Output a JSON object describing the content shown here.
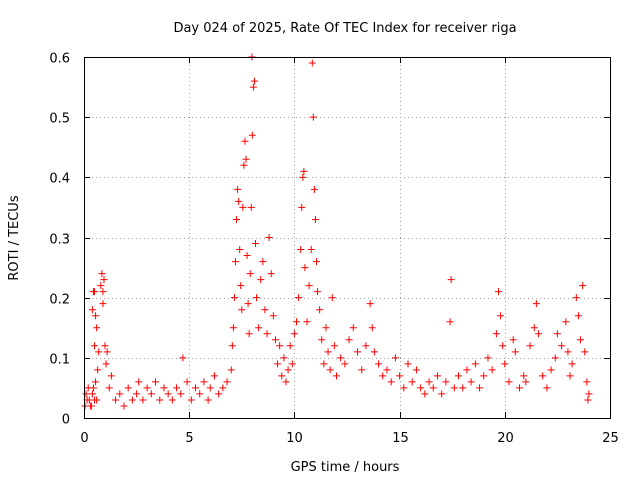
{
  "chart_data": {
    "type": "scatter",
    "title": "Day 024 of 2025, Rate Of TEC Index for receiver riga",
    "xlabel": "GPS time / hours",
    "ylabel": "ROTI / TECUs",
    "xlim": [
      0,
      25
    ],
    "ylim": [
      0,
      0.6
    ],
    "x_ticks": [
      0,
      5,
      10,
      15,
      20,
      25
    ],
    "x_tick_labels": [
      "0",
      "5",
      "10",
      "15",
      "20",
      "25"
    ],
    "y_ticks": [
      0,
      0.1,
      0.2,
      0.3,
      0.4,
      0.5,
      0.6
    ],
    "y_tick_labels": [
      "0",
      "0.1",
      "0.2",
      "0.3",
      "0.4",
      "0.5",
      "0.6"
    ],
    "grid": true,
    "marker": "+",
    "color": "#ff0000",
    "series": [
      {
        "name": "ROTI",
        "points": [
          [
            0.05,
            0.02
          ],
          [
            0.1,
            0.04
          ],
          [
            0.15,
            0.03
          ],
          [
            0.2,
            0.05
          ],
          [
            0.25,
            0.03
          ],
          [
            0.3,
            0.02
          ],
          [
            0.4,
            0.04
          ],
          [
            0.5,
            0.03
          ],
          [
            0.55,
            0.06
          ],
          [
            0.6,
            0.03
          ],
          [
            0.35,
            0.02
          ],
          [
            0.45,
            0.05
          ],
          [
            0.65,
            0.08
          ],
          [
            0.7,
            0.11
          ],
          [
            0.4,
            0.18
          ],
          [
            0.45,
            0.21
          ],
          [
            0.5,
            0.21
          ],
          [
            0.55,
            0.17
          ],
          [
            0.6,
            0.15
          ],
          [
            0.5,
            0.12
          ],
          [
            0.8,
            0.22
          ],
          [
            0.85,
            0.24
          ],
          [
            0.9,
            0.21
          ],
          [
            0.9,
            0.19
          ],
          [
            0.95,
            0.23
          ],
          [
            1.0,
            0.12
          ],
          [
            1.05,
            0.09
          ],
          [
            1.1,
            0.11
          ],
          [
            1.2,
            0.05
          ],
          [
            1.3,
            0.07
          ],
          [
            1.5,
            0.03
          ],
          [
            1.7,
            0.04
          ],
          [
            1.9,
            0.02
          ],
          [
            2.1,
            0.05
          ],
          [
            2.3,
            0.03
          ],
          [
            2.5,
            0.04
          ],
          [
            2.6,
            0.06
          ],
          [
            2.8,
            0.03
          ],
          [
            3.0,
            0.05
          ],
          [
            3.2,
            0.04
          ],
          [
            3.4,
            0.06
          ],
          [
            3.6,
            0.03
          ],
          [
            3.8,
            0.05
          ],
          [
            4.0,
            0.04
          ],
          [
            4.2,
            0.03
          ],
          [
            4.4,
            0.05
          ],
          [
            4.6,
            0.04
          ],
          [
            4.7,
            0.1
          ],
          [
            4.9,
            0.06
          ],
          [
            5.1,
            0.03
          ],
          [
            5.3,
            0.05
          ],
          [
            5.5,
            0.04
          ],
          [
            5.7,
            0.06
          ],
          [
            5.9,
            0.03
          ],
          [
            6.0,
            0.05
          ],
          [
            6.2,
            0.07
          ],
          [
            6.4,
            0.04
          ],
          [
            6.6,
            0.05
          ],
          [
            6.8,
            0.06
          ],
          [
            7.0,
            0.08
          ],
          [
            7.05,
            0.12
          ],
          [
            7.1,
            0.15
          ],
          [
            7.15,
            0.2
          ],
          [
            7.2,
            0.26
          ],
          [
            7.25,
            0.33
          ],
          [
            7.3,
            0.38
          ],
          [
            7.35,
            0.36
          ],
          [
            7.4,
            0.28
          ],
          [
            7.45,
            0.22
          ],
          [
            7.5,
            0.18
          ],
          [
            7.55,
            0.35
          ],
          [
            7.6,
            0.42
          ],
          [
            7.65,
            0.46
          ],
          [
            7.7,
            0.43
          ],
          [
            7.75,
            0.27
          ],
          [
            7.8,
            0.19
          ],
          [
            7.85,
            0.14
          ],
          [
            7.9,
            0.24
          ],
          [
            7.95,
            0.35
          ],
          [
            8.0,
            0.47
          ],
          [
            8.05,
            0.55
          ],
          [
            8.1,
            0.56
          ],
          [
            7.98,
            0.6
          ],
          [
            8.15,
            0.29
          ],
          [
            8.2,
            0.2
          ],
          [
            8.3,
            0.15
          ],
          [
            8.4,
            0.23
          ],
          [
            8.5,
            0.26
          ],
          [
            8.6,
            0.18
          ],
          [
            8.7,
            0.14
          ],
          [
            8.8,
            0.3
          ],
          [
            8.9,
            0.24
          ],
          [
            9.0,
            0.17
          ],
          [
            9.1,
            0.13
          ],
          [
            9.2,
            0.09
          ],
          [
            9.3,
            0.12
          ],
          [
            9.4,
            0.07
          ],
          [
            9.5,
            0.1
          ],
          [
            9.6,
            0.06
          ],
          [
            9.7,
            0.08
          ],
          [
            9.8,
            0.12
          ],
          [
            9.9,
            0.09
          ],
          [
            10.0,
            0.14
          ],
          [
            10.1,
            0.16
          ],
          [
            10.2,
            0.2
          ],
          [
            10.3,
            0.28
          ],
          [
            10.35,
            0.35
          ],
          [
            10.4,
            0.4
          ],
          [
            10.45,
            0.41
          ],
          [
            10.5,
            0.25
          ],
          [
            10.6,
            0.16
          ],
          [
            10.7,
            0.22
          ],
          [
            10.8,
            0.28
          ],
          [
            10.85,
            0.59
          ],
          [
            10.9,
            0.5
          ],
          [
            10.95,
            0.38
          ],
          [
            11.0,
            0.33
          ],
          [
            11.05,
            0.26
          ],
          [
            11.1,
            0.21
          ],
          [
            11.2,
            0.18
          ],
          [
            11.3,
            0.13
          ],
          [
            11.4,
            0.09
          ],
          [
            11.5,
            0.15
          ],
          [
            11.6,
            0.11
          ],
          [
            11.7,
            0.08
          ],
          [
            11.8,
            0.2
          ],
          [
            11.9,
            0.12
          ],
          [
            12.0,
            0.07
          ],
          [
            12.2,
            0.1
          ],
          [
            12.4,
            0.09
          ],
          [
            12.6,
            0.13
          ],
          [
            12.8,
            0.15
          ],
          [
            13.0,
            0.11
          ],
          [
            13.2,
            0.08
          ],
          [
            13.4,
            0.12
          ],
          [
            13.6,
            0.19
          ],
          [
            13.7,
            0.15
          ],
          [
            13.8,
            0.11
          ],
          [
            14.0,
            0.09
          ],
          [
            14.2,
            0.07
          ],
          [
            14.4,
            0.08
          ],
          [
            14.6,
            0.06
          ],
          [
            14.8,
            0.1
          ],
          [
            15.0,
            0.07
          ],
          [
            15.2,
            0.05
          ],
          [
            15.4,
            0.09
          ],
          [
            15.6,
            0.06
          ],
          [
            15.8,
            0.08
          ],
          [
            16.0,
            0.05
          ],
          [
            16.2,
            0.04
          ],
          [
            16.4,
            0.06
          ],
          [
            16.6,
            0.05
          ],
          [
            16.8,
            0.07
          ],
          [
            17.0,
            0.04
          ],
          [
            17.2,
            0.06
          ],
          [
            17.4,
            0.16
          ],
          [
            17.45,
            0.23
          ],
          [
            17.6,
            0.05
          ],
          [
            17.8,
            0.07
          ],
          [
            18.0,
            0.05
          ],
          [
            18.2,
            0.08
          ],
          [
            18.4,
            0.06
          ],
          [
            18.6,
            0.09
          ],
          [
            18.8,
            0.05
          ],
          [
            19.0,
            0.07
          ],
          [
            19.2,
            0.1
          ],
          [
            19.4,
            0.08
          ],
          [
            19.6,
            0.14
          ],
          [
            19.7,
            0.21
          ],
          [
            19.8,
            0.17
          ],
          [
            19.9,
            0.12
          ],
          [
            20.0,
            0.09
          ],
          [
            20.2,
            0.06
          ],
          [
            20.4,
            0.13
          ],
          [
            20.5,
            0.11
          ],
          [
            20.7,
            0.05
          ],
          [
            20.9,
            0.07
          ],
          [
            21.0,
            0.06
          ],
          [
            21.2,
            0.12
          ],
          [
            21.4,
            0.15
          ],
          [
            21.5,
            0.19
          ],
          [
            21.6,
            0.14
          ],
          [
            21.8,
            0.07
          ],
          [
            22.0,
            0.05
          ],
          [
            22.2,
            0.08
          ],
          [
            22.4,
            0.1
          ],
          [
            22.5,
            0.14
          ],
          [
            22.7,
            0.12
          ],
          [
            22.9,
            0.16
          ],
          [
            23.0,
            0.11
          ],
          [
            23.1,
            0.07
          ],
          [
            23.2,
            0.09
          ],
          [
            23.4,
            0.2
          ],
          [
            23.5,
            0.17
          ],
          [
            23.6,
            0.13
          ],
          [
            23.7,
            0.22
          ],
          [
            23.8,
            0.11
          ],
          [
            23.9,
            0.06
          ],
          [
            24.0,
            0.04
          ],
          [
            23.95,
            0.03
          ]
        ]
      }
    ]
  }
}
